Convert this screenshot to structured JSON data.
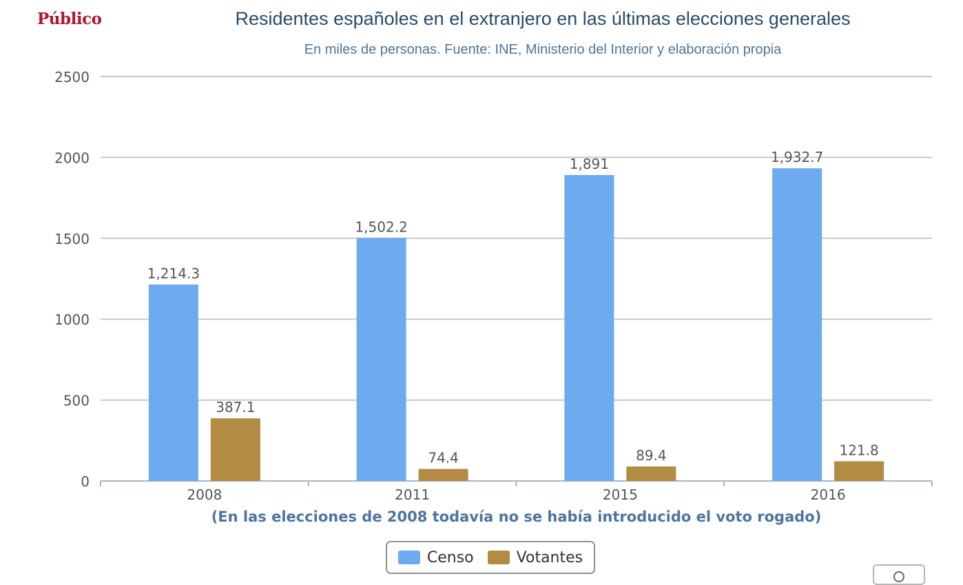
{
  "header": {
    "brand": "Público",
    "brand_color": "#b3162b"
  },
  "chart_data": {
    "type": "bar",
    "title": "Residentes españoles en el extranjero en las últimas elecciones generales",
    "subtitle": "En miles de personas. Fuente: INE, Ministerio del Interior y elaboración propia",
    "categories": [
      "2008",
      "2011",
      "2015",
      "2016"
    ],
    "series": [
      {
        "name": "Censo",
        "color": "#6eaaf0",
        "values": [
          1214.3,
          1502.2,
          1891,
          1932.7
        ],
        "labels": [
          "1,214.3",
          "1,502.2",
          "1,891",
          "1,932.7"
        ]
      },
      {
        "name": "Votantes",
        "color": "#b38b42",
        "values": [
          387.1,
          74.4,
          89.4,
          121.8
        ],
        "labels": [
          "387.1",
          "74.4",
          "89.4",
          "121.8"
        ]
      }
    ],
    "xlabel": "(En las elecciones de 2008 todavía no se había introducido el voto rogado)",
    "ylabel": "",
    "ylim": [
      0,
      2500
    ],
    "yticks": [
      "0",
      "500",
      "1000",
      "1500",
      "2000",
      "2500"
    ],
    "grid": true,
    "legend_position": "bottom-center"
  },
  "toolbar": {
    "menu_icon": "menu-icon"
  }
}
